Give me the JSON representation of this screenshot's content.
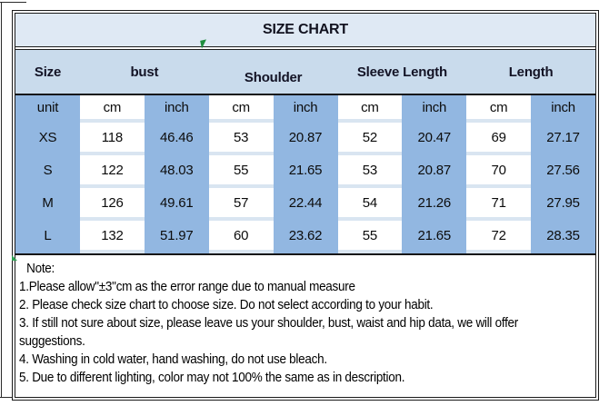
{
  "title": "SIZE CHART",
  "table": {
    "headers": [
      "Size",
      "bust",
      "Shoulder",
      "Sleeve Length",
      "Length"
    ],
    "unit_row": [
      "unit",
      "cm",
      "inch",
      "cm",
      "inch",
      "cm",
      "inch",
      "cm",
      "inch"
    ],
    "rows": [
      {
        "size": "XS",
        "values": [
          "118",
          "46.46",
          "53",
          "20.87",
          "52",
          "20.47",
          "69",
          "27.17"
        ]
      },
      {
        "size": "S",
        "values": [
          "122",
          "48.03",
          "55",
          "21.65",
          "53",
          "20.87",
          "70",
          "27.56"
        ]
      },
      {
        "size": "M",
        "values": [
          "126",
          "49.61",
          "57",
          "22.44",
          "54",
          "21.26",
          "71",
          "27.95"
        ]
      },
      {
        "size": "L",
        "values": [
          "132",
          "51.97",
          "60",
          "23.62",
          "55",
          "21.65",
          "72",
          "28.35"
        ]
      }
    ]
  },
  "notes": {
    "lines": [
      "Note:",
      "1.Please allow\"±3\"cm as the error range due to manual measure",
      "2. Please check size chart to choose size. Do not select according to your habit.",
      "3. If still not sure about size, please leave us your shoulder, bust, waist and hip data, we will offer",
      "suggestions.",
      "4. Washing in cold water, hand washing, do not use bleach.",
      "5. Due to different lighting, color may not 100% the same as in description."
    ]
  },
  "colors": {
    "title_bg": "#dfe9f4",
    "header_bg": "#c9dbec",
    "blue_cell": "#92b7e1",
    "white_cell": "#ffffff",
    "row_gap": "#d9e5f1",
    "border": "#1b1b1b",
    "green_mark": "#1e8e3e"
  },
  "chart_data": {
    "type": "table",
    "title": "SIZE CHART",
    "columns": [
      "Size",
      "bust (cm)",
      "bust (inch)",
      "Shoulder (cm)",
      "Shoulder (inch)",
      "Sleeve Length (cm)",
      "Sleeve Length (inch)",
      "Length (cm)",
      "Length (inch)"
    ],
    "rows": [
      [
        "XS",
        118,
        46.46,
        53,
        20.87,
        52,
        20.47,
        69,
        27.17
      ],
      [
        "S",
        122,
        48.03,
        55,
        21.65,
        53,
        20.87,
        70,
        27.56
      ],
      [
        "M",
        126,
        49.61,
        57,
        22.44,
        54,
        21.26,
        71,
        27.95
      ],
      [
        "L",
        132,
        51.97,
        60,
        23.62,
        55,
        21.65,
        72,
        28.35
      ]
    ]
  }
}
